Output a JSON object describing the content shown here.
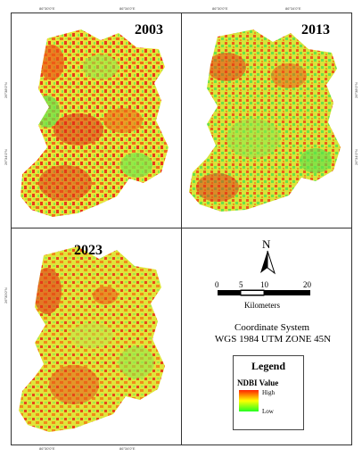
{
  "panels": [
    {
      "year": "2003"
    },
    {
      "year": "2013"
    },
    {
      "year": "2023"
    }
  ],
  "north_arrow": {
    "label": "N"
  },
  "scale_bar": {
    "ticks": [
      "0",
      "5",
      "10",
      "20"
    ],
    "units": "Kilometers"
  },
  "coordinate_system": {
    "line1": "Coordinate System",
    "line2": "WGS 1984 UTM ZONE 45N"
  },
  "legend": {
    "title": "Legend",
    "subtitle": "NDBI Value",
    "high_label": "High",
    "low_label": "Low",
    "ramp_colors": [
      "#ff2200",
      "#ffff00",
      "#22ff22"
    ]
  },
  "graticule": {
    "top_left": [
      "86°30'0\"E",
      "86°34'0\"E"
    ],
    "top_right": [
      "86°30'0\"E",
      "86°34'0\"E"
    ],
    "bottom_left": [
      "86°30'0\"E",
      "86°34'0\"E"
    ],
    "left_labels": [
      "26°38'0\"N",
      "26°34'0\"N",
      "26°30'0\"N"
    ],
    "right_labels": [
      "26°38'0\"N",
      "26°34'0\"N"
    ]
  }
}
